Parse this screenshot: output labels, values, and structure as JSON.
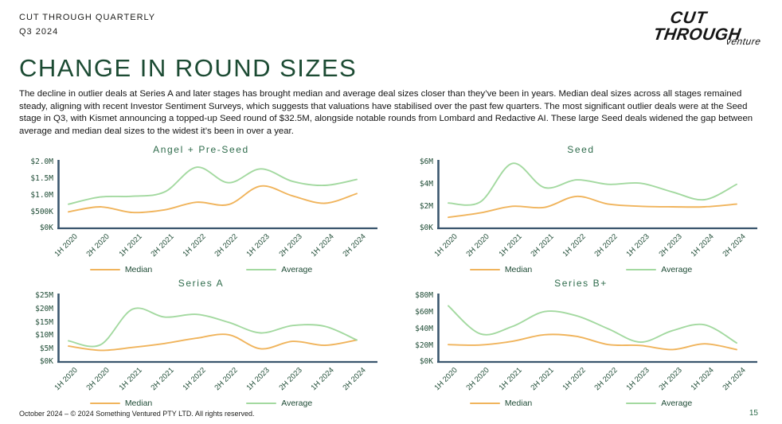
{
  "header": {
    "kicker_line1": "CUT THROUGH QUARTERLY",
    "kicker_line2": "Q3 2024"
  },
  "logo": {
    "line1": "CUT",
    "line2": "THROUGH",
    "sub": "venture"
  },
  "title": "CHANGE IN ROUND SIZES",
  "intro": "The decline in outlier deals at Series A and later stages has brought median and average deal sizes closer than they’ve been in years. Median deal sizes across all stages remained steady, aligning with recent Investor Sentiment Surveys, which suggests that valuations have stabilised over the past few quarters. The most significant outlier deals were at the Seed stage in Q3, with Kismet announcing a topped-up Seed round of $32.5M, alongside notable rounds from Lombard and Redactive AI. These large Seed deals widened the gap between average and median deal sizes to the widest it’s been in over a year.",
  "palette": {
    "median_line": "#F0B45C",
    "average_line": "#A3D9A0",
    "axis": "#3A566E",
    "tick_text": "#1E4B35",
    "chart_title": "#2E6B4B",
    "heading": "#1C4B33",
    "page_number": "#2E6B4B"
  },
  "chart_data": [
    {
      "type": "line",
      "title": "Angel + Pre-Seed",
      "categories": [
        "1H 2020",
        "2H 2020",
        "1H 2021",
        "2H 2021",
        "1H 2022",
        "2H 2022",
        "1H 2023",
        "2H 2023",
        "1H 2024",
        "2H 2024"
      ],
      "ymax": 2.0,
      "y_ticks": [
        {
          "label": "$0K",
          "value": 0
        },
        {
          "label": "$500K",
          "value": 0.5
        },
        {
          "label": "$1.0M",
          "value": 1.0
        },
        {
          "label": "$1.5M",
          "value": 1.5
        },
        {
          "label": "$2.0M",
          "value": 2.0
        }
      ],
      "series": [
        {
          "name": "Median",
          "values": [
            0.5,
            0.65,
            0.48,
            0.56,
            0.79,
            0.72,
            1.28,
            0.98,
            0.76,
            1.05
          ]
        },
        {
          "name": "Average",
          "values": [
            0.73,
            0.95,
            0.97,
            1.1,
            1.85,
            1.38,
            1.8,
            1.42,
            1.3,
            1.48
          ]
        }
      ]
    },
    {
      "type": "line",
      "title": "Seed",
      "categories": [
        "1H 2020",
        "2H 2020",
        "1H 2021",
        "2H 2021",
        "1H 2022",
        "2H 2022",
        "1H 2023",
        "2H 2023",
        "1H 2024",
        "2H 2024"
      ],
      "ymax": 6,
      "y_ticks": [
        {
          "label": "$0K",
          "value": 0
        },
        {
          "label": "$2M",
          "value": 2
        },
        {
          "label": "$4M",
          "value": 4
        },
        {
          "label": "$6M",
          "value": 6
        }
      ],
      "series": [
        {
          "name": "Median",
          "values": [
            1.0,
            1.4,
            2.0,
            1.9,
            2.9,
            2.2,
            2.0,
            1.95,
            1.95,
            2.2
          ]
        },
        {
          "name": "Average",
          "values": [
            2.3,
            2.4,
            5.9,
            3.7,
            4.4,
            4.0,
            4.1,
            3.3,
            2.6,
            4.0
          ]
        }
      ]
    },
    {
      "type": "line",
      "title": "Series A",
      "categories": [
        "1H 2020",
        "2H 2020",
        "1H 2021",
        "2H 2021",
        "1H 2022",
        "2H 2022",
        "1H 2023",
        "2H 2023",
        "1H 2024",
        "2H 2024"
      ],
      "ymax": 25,
      "y_ticks": [
        {
          "label": "$0K",
          "value": 0
        },
        {
          "label": "$5M",
          "value": 5
        },
        {
          "label": "$10M",
          "value": 10
        },
        {
          "label": "$15M",
          "value": 15
        },
        {
          "label": "$20M",
          "value": 20
        },
        {
          "label": "$25M",
          "value": 25
        }
      ],
      "series": [
        {
          "name": "Median",
          "values": [
            6.0,
            4.4,
            5.5,
            7.0,
            9.0,
            10.3,
            5.0,
            7.8,
            6.3,
            8.3
          ]
        },
        {
          "name": "Average",
          "values": [
            8.0,
            6.5,
            20.0,
            17.0,
            18.0,
            15.0,
            11.0,
            13.8,
            13.5,
            8.3
          ]
        }
      ]
    },
    {
      "type": "line",
      "title": "Series B+",
      "categories": [
        "1H 2020",
        "2H 2020",
        "1H 2021",
        "2H 2021",
        "1H 2022",
        "2H 2022",
        "1H 2023",
        "2H 2023",
        "1H 2024",
        "2H 2024"
      ],
      "ymax": 80,
      "y_ticks": [
        {
          "label": "$0K",
          "value": 0
        },
        {
          "label": "$20M",
          "value": 20
        },
        {
          "label": "$40M",
          "value": 40
        },
        {
          "label": "$60M",
          "value": 60
        },
        {
          "label": "$80M",
          "value": 80
        }
      ],
      "series": [
        {
          "name": "Median",
          "values": [
            21,
            20.5,
            25,
            33,
            31,
            21,
            20,
            15,
            22,
            15
          ]
        },
        {
          "name": "Average",
          "values": [
            68,
            34,
            43,
            61,
            56,
            40,
            24,
            38,
            45,
            23
          ]
        }
      ]
    }
  ],
  "footer": {
    "copyright": "October 2024 – © 2024 Something Ventured PTY LTD. All rights reserved.",
    "page_number": "15"
  }
}
